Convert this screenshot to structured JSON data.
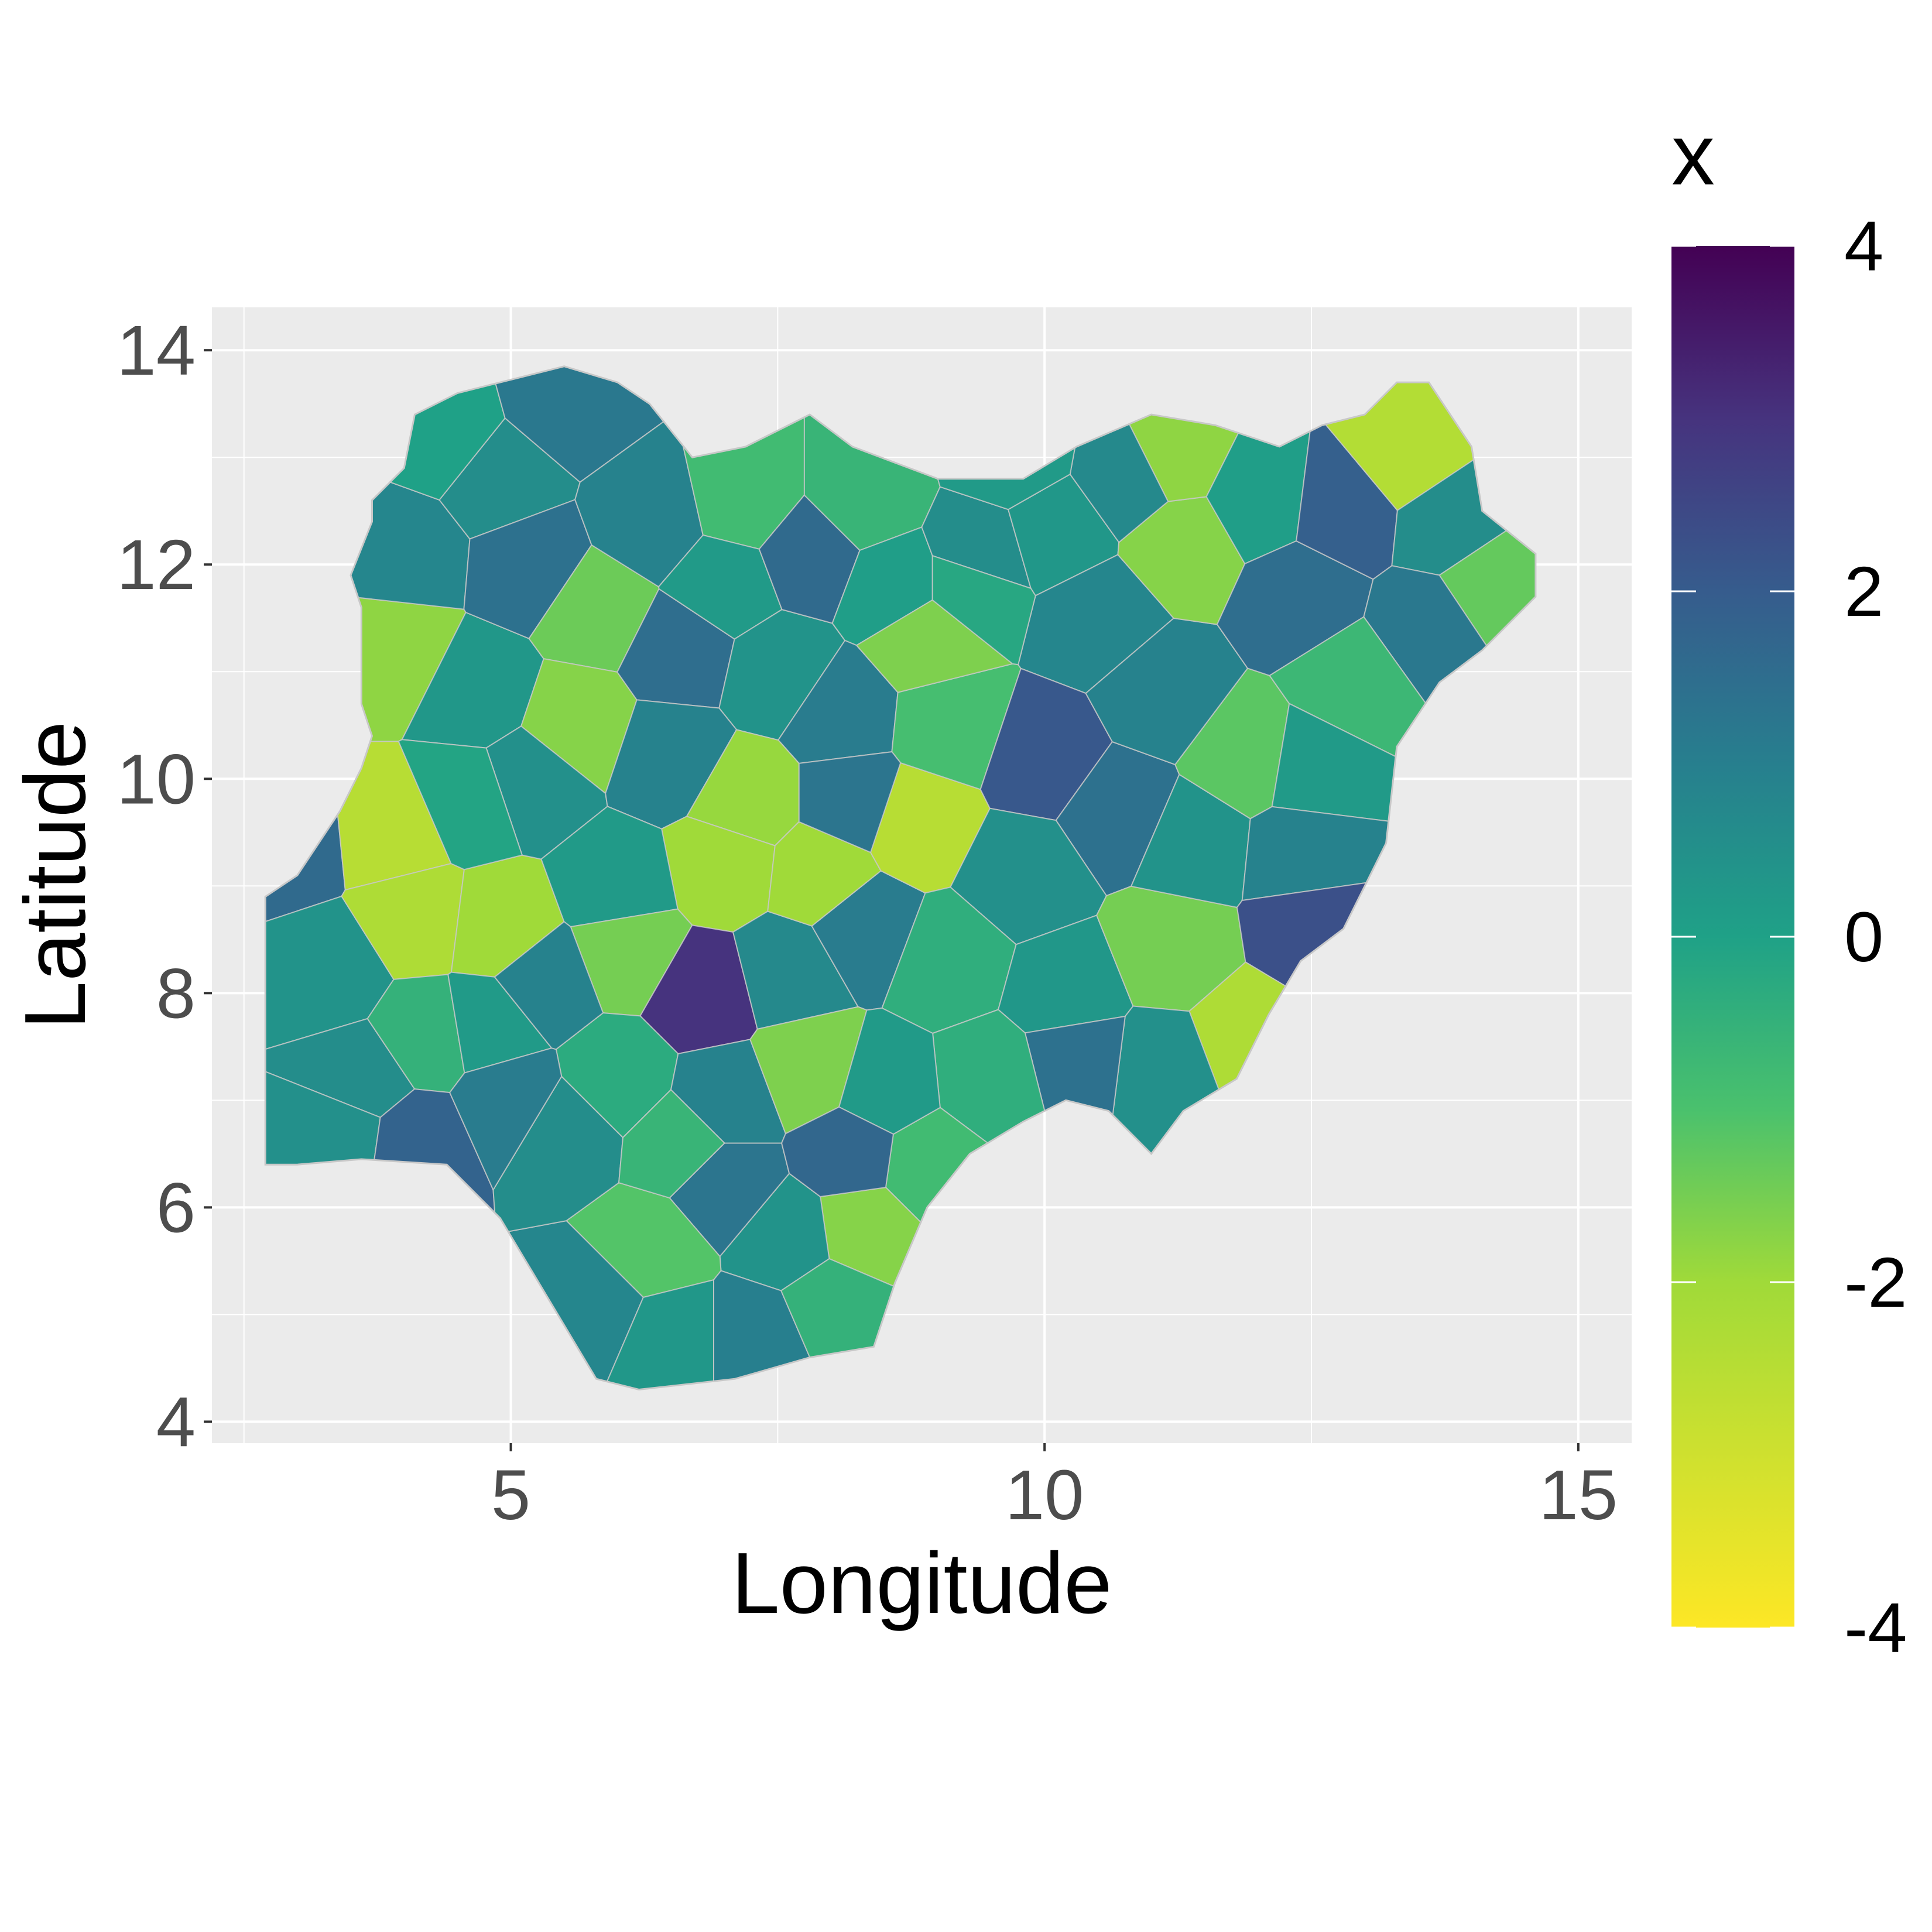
{
  "chart_data": {
    "type": "choropleth",
    "region": "Nigeria",
    "xlabel": "Longitude",
    "ylabel": "Latitude",
    "xlim": [
      2.2,
      15.5
    ],
    "ylim": [
      3.8,
      14.4
    ],
    "x_ticks": [
      5,
      10,
      15
    ],
    "y_ticks": [
      4,
      6,
      8,
      10,
      12,
      14
    ],
    "x_tick_labels": [
      "5",
      "10",
      "15"
    ],
    "y_tick_labels": [
      "4",
      "6",
      "8",
      "10",
      "12",
      "14"
    ],
    "grid": true,
    "background": "#ebebeb",
    "gridline_color": "#ffffff",
    "border_color": "#c8c8c8",
    "legend": {
      "title": "x",
      "position": "right",
      "scale": "viridis",
      "min": -4,
      "max": 4,
      "ticks": [
        4,
        2,
        0,
        -2,
        -4
      ],
      "tick_labels": [
        "4",
        "2",
        "0",
        "-2",
        "-4"
      ],
      "colors": [
        "#440154",
        "#3b528b",
        "#21908c",
        "#5ec962",
        "#fde725"
      ]
    },
    "outline": [
      [
        2.7,
        6.4
      ],
      [
        2.7,
        8.9
      ],
      [
        3.0,
        9.1
      ],
      [
        3.4,
        9.7
      ],
      [
        3.6,
        10.1
      ],
      [
        3.7,
        10.4
      ],
      [
        3.6,
        10.7
      ],
      [
        3.6,
        11.2
      ],
      [
        3.6,
        11.6
      ],
      [
        3.5,
        11.9
      ],
      [
        3.7,
        12.4
      ],
      [
        3.7,
        12.6
      ],
      [
        4.0,
        12.9
      ],
      [
        4.1,
        13.4
      ],
      [
        4.5,
        13.6
      ],
      [
        4.9,
        13.7
      ],
      [
        5.5,
        13.85
      ],
      [
        6.0,
        13.7
      ],
      [
        6.3,
        13.5
      ],
      [
        6.7,
        13.0
      ],
      [
        7.2,
        13.1
      ],
      [
        7.8,
        13.4
      ],
      [
        8.2,
        13.1
      ],
      [
        9.0,
        12.8
      ],
      [
        9.8,
        12.8
      ],
      [
        10.3,
        13.1
      ],
      [
        11.0,
        13.4
      ],
      [
        11.6,
        13.3
      ],
      [
        12.2,
        13.1
      ],
      [
        12.6,
        13.3
      ],
      [
        13.0,
        13.4
      ],
      [
        13.3,
        13.7
      ],
      [
        13.6,
        13.7
      ],
      [
        14.0,
        13.1
      ],
      [
        14.1,
        12.5
      ],
      [
        14.6,
        12.1
      ],
      [
        14.6,
        11.7
      ],
      [
        14.1,
        11.2
      ],
      [
        13.7,
        10.9
      ],
      [
        13.3,
        10.3
      ],
      [
        13.2,
        9.4
      ],
      [
        13.0,
        9.0
      ],
      [
        12.8,
        8.6
      ],
      [
        12.4,
        8.3
      ],
      [
        12.1,
        7.8
      ],
      [
        11.8,
        7.2
      ],
      [
        11.3,
        6.9
      ],
      [
        11.0,
        6.5
      ],
      [
        10.6,
        6.9
      ],
      [
        10.2,
        7.0
      ],
      [
        9.8,
        6.8
      ],
      [
        9.3,
        6.5
      ],
      [
        8.9,
        6.0
      ],
      [
        8.6,
        5.3
      ],
      [
        8.4,
        4.7
      ],
      [
        7.8,
        4.6
      ],
      [
        7.1,
        4.4
      ],
      [
        6.2,
        4.3
      ],
      [
        5.8,
        4.4
      ],
      [
        5.5,
        4.9
      ],
      [
        5.2,
        5.4
      ],
      [
        4.9,
        5.9
      ],
      [
        4.4,
        6.4
      ],
      [
        3.6,
        6.45
      ],
      [
        3.0,
        6.4
      ]
    ],
    "districts": [
      {
        "lon": 2.9,
        "lat": 9.4,
        "x": 1.6
      },
      {
        "lon": 3.3,
        "lat": 8.2,
        "x": 0.4
      },
      {
        "lon": 3.9,
        "lat": 9.5,
        "x": -2.5
      },
      {
        "lon": 4.1,
        "lat": 8.7,
        "x": -2.3
      },
      {
        "lon": 4.9,
        "lat": 8.6,
        "x": -2.0
      },
      {
        "lon": 3.6,
        "lat": 7.2,
        "x": 0.6
      },
      {
        "lon": 4.2,
        "lat": 7.6,
        "x": -0.5
      },
      {
        "lon": 4.8,
        "lat": 7.7,
        "x": 0.2
      },
      {
        "lon": 3.4,
        "lat": 6.7,
        "x": 0.5
      },
      {
        "lon": 4.1,
        "lat": 6.6,
        "x": 1.8
      },
      {
        "lon": 3.9,
        "lat": 11.2,
        "x": -1.8
      },
      {
        "lon": 4.7,
        "lat": 10.8,
        "x": 0.3
      },
      {
        "lon": 4.0,
        "lat": 12.1,
        "x": 0.8
      },
      {
        "lon": 4.9,
        "lat": 12.8,
        "x": 0.6
      },
      {
        "lon": 4.4,
        "lat": 13.2,
        "x": 0.0
      },
      {
        "lon": 5.5,
        "lat": 13.5,
        "x": 1.2
      },
      {
        "lon": 5.2,
        "lat": 12.0,
        "x": 1.4
      },
      {
        "lon": 5.8,
        "lat": 11.6,
        "x": -1.4
      },
      {
        "lon": 5.6,
        "lat": 10.5,
        "x": -1.7
      },
      {
        "lon": 5.2,
        "lat": 10.0,
        "x": 0.5
      },
      {
        "lon": 6.3,
        "lat": 12.4,
        "x": 0.9
      },
      {
        "lon": 6.6,
        "lat": 11.2,
        "x": 1.5
      },
      {
        "lon": 7.2,
        "lat": 12.6,
        "x": -0.8
      },
      {
        "lon": 7.0,
        "lat": 11.8,
        "x": 0.2
      },
      {
        "lon": 7.5,
        "lat": 11.0,
        "x": 0.4
      },
      {
        "lon": 7.8,
        "lat": 12.1,
        "x": 1.6
      },
      {
        "lon": 8.3,
        "lat": 12.6,
        "x": -0.6
      },
      {
        "lon": 8.6,
        "lat": 11.8,
        "x": 0.1
      },
      {
        "lon": 8.1,
        "lat": 10.6,
        "x": 1.1
      },
      {
        "lon": 6.5,
        "lat": 10.2,
        "x": 0.9
      },
      {
        "lon": 7.2,
        "lat": 9.8,
        "x": -1.9
      },
      {
        "lon": 7.0,
        "lat": 9.2,
        "x": -2.0
      },
      {
        "lon": 6.0,
        "lat": 9.0,
        "x": 0.2
      },
      {
        "lon": 6.1,
        "lat": 8.4,
        "x": -1.5
      },
      {
        "lon": 6.8,
        "lat": 8.0,
        "x": 3.0
      },
      {
        "lon": 7.6,
        "lat": 8.2,
        "x": 0.7
      },
      {
        "lon": 8.3,
        "lat": 8.6,
        "x": 1.1
      },
      {
        "lon": 7.9,
        "lat": 9.1,
        "x": -2.0
      },
      {
        "lon": 8.8,
        "lat": 9.6,
        "x": -2.5
      },
      {
        "lon": 9.1,
        "lat": 10.5,
        "x": -0.9
      },
      {
        "lon": 8.9,
        "lat": 11.3,
        "x": -1.6
      },
      {
        "lon": 9.4,
        "lat": 12.1,
        "x": 0.6
      },
      {
        "lon": 10.1,
        "lat": 12.3,
        "x": 0.3
      },
      {
        "lon": 10.5,
        "lat": 11.5,
        "x": 0.8
      },
      {
        "lon": 10.0,
        "lat": 10.2,
        "x": 2.1
      },
      {
        "lon": 10.7,
        "lat": 9.7,
        "x": 1.4
      },
      {
        "lon": 9.8,
        "lat": 9.1,
        "x": 0.5
      },
      {
        "lon": 9.1,
        "lat": 8.3,
        "x": -0.4
      },
      {
        "lon": 10.2,
        "lat": 8.0,
        "x": 0.3
      },
      {
        "lon": 11.2,
        "lat": 8.4,
        "x": -1.5
      },
      {
        "lon": 11.4,
        "lat": 9.4,
        "x": 0.4
      },
      {
        "lon": 11.9,
        "lat": 10.2,
        "x": -1.2
      },
      {
        "lon": 11.1,
        "lat": 10.8,
        "x": 0.9
      },
      {
        "lon": 11.3,
        "lat": 12.2,
        "x": -1.7
      },
      {
        "lon": 11.2,
        "lat": 13.0,
        "x": -1.8
      },
      {
        "lon": 12.0,
        "lat": 12.6,
        "x": 0.1
      },
      {
        "lon": 12.4,
        "lat": 11.7,
        "x": 1.5
      },
      {
        "lon": 12.8,
        "lat": 12.5,
        "x": 1.9
      },
      {
        "lon": 13.4,
        "lat": 13.0,
        "x": -2.4
      },
      {
        "lon": 13.8,
        "lat": 12.4,
        "x": 0.6
      },
      {
        "lon": 14.2,
        "lat": 11.8,
        "x": -1.3
      },
      {
        "lon": 13.6,
        "lat": 11.4,
        "x": 1.2
      },
      {
        "lon": 12.9,
        "lat": 10.9,
        "x": -0.7
      },
      {
        "lon": 12.5,
        "lat": 10.1,
        "x": 0.2
      },
      {
        "lon": 12.4,
        "lat": 9.3,
        "x": 0.9
      },
      {
        "lon": 12.5,
        "lat": 8.6,
        "x": 2.3
      },
      {
        "lon": 11.9,
        "lat": 7.6,
        "x": -2.3
      },
      {
        "lon": 11.1,
        "lat": 7.3,
        "x": 0.5
      },
      {
        "lon": 10.3,
        "lat": 7.4,
        "x": 1.4
      },
      {
        "lon": 9.5,
        "lat": 7.2,
        "x": -0.4
      },
      {
        "lon": 8.9,
        "lat": 6.4,
        "x": -0.8
      },
      {
        "lon": 8.3,
        "lat": 5.8,
        "x": -1.7
      },
      {
        "lon": 7.6,
        "lat": 5.7,
        "x": 0.4
      },
      {
        "lon": 7.0,
        "lat": 6.2,
        "x": 1.3
      },
      {
        "lon": 6.3,
        "lat": 5.6,
        "x": -1.1
      },
      {
        "lon": 5.8,
        "lat": 5.1,
        "x": 0.8
      },
      {
        "lon": 6.5,
        "lat": 4.8,
        "x": 0.3
      },
      {
        "lon": 7.3,
        "lat": 4.8,
        "x": 1.0
      },
      {
        "lon": 8.0,
        "lat": 5.1,
        "x": -0.5
      },
      {
        "lon": 5.5,
        "lat": 6.7,
        "x": 0.6
      },
      {
        "lon": 6.0,
        "lat": 7.2,
        "x": -0.3
      },
      {
        "lon": 7.0,
        "lat": 7.0,
        "x": 0.9
      },
      {
        "lon": 7.8,
        "lat": 7.3,
        "x": -1.6
      },
      {
        "lon": 8.5,
        "lat": 7.1,
        "x": 0.2
      },
      {
        "lon": 5.0,
        "lat": 7.0,
        "x": 1.1
      },
      {
        "lon": 6.6,
        "lat": 6.6,
        "x": -0.6
      },
      {
        "lon": 8.2,
        "lat": 6.5,
        "x": 1.7
      },
      {
        "lon": 9.3,
        "lat": 11.8,
        "x": -0.2
      },
      {
        "lon": 8.2,
        "lat": 9.8,
        "x": 1.3
      },
      {
        "lon": 5.3,
        "lat": 8.1,
        "x": 0.9
      },
      {
        "lon": 4.6,
        "lat": 9.8,
        "x": -0.1
      },
      {
        "lon": 10.8,
        "lat": 12.8,
        "x": 0.7
      },
      {
        "lon": 9.7,
        "lat": 13.0,
        "x": 0.2
      }
    ]
  }
}
